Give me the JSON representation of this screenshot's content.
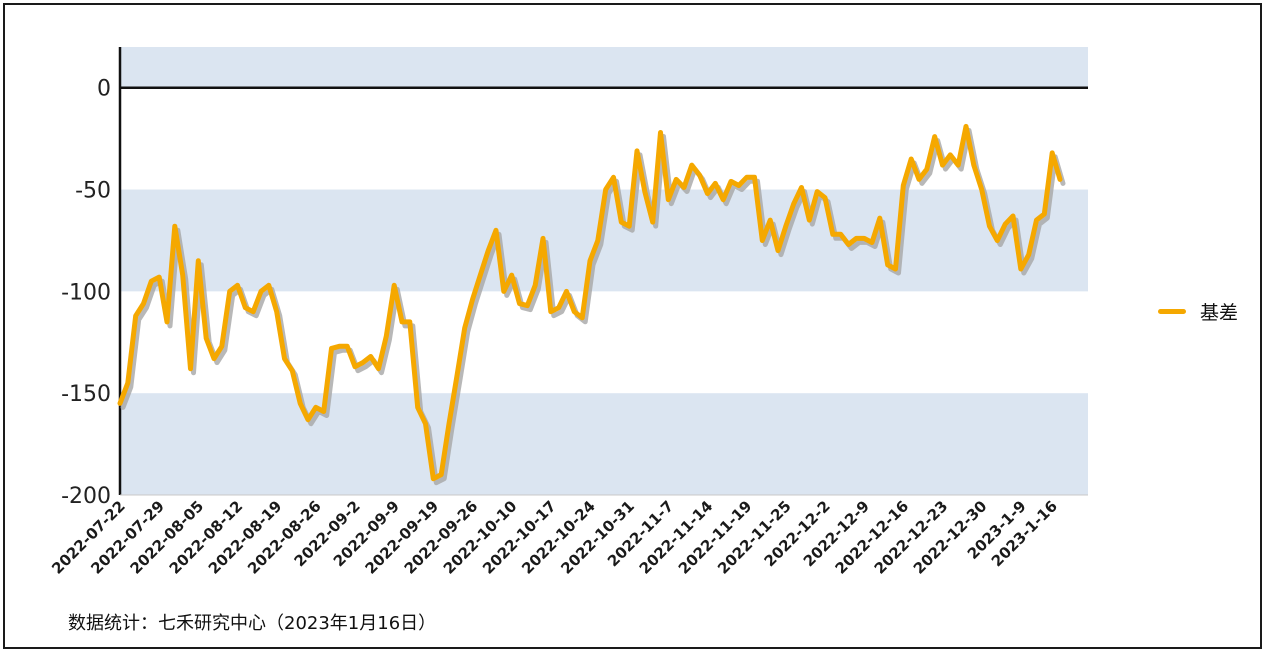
{
  "chart_data": {
    "type": "line",
    "ylim": [
      -200,
      20
    ],
    "yticks": [
      0,
      -50,
      -100,
      -150,
      -200
    ],
    "grid": "alternating horizontal bands",
    "legend_position": "right",
    "series": [
      {
        "name": "基差",
        "color": "#f5a800",
        "values": [
          -155,
          -145,
          -112,
          -106,
          -95,
          -93,
          -115,
          -68,
          -92,
          -138,
          -85,
          -123,
          -133,
          -127,
          -100,
          -97,
          -108,
          -110,
          -100,
          -97,
          -110,
          -133,
          -139,
          -155,
          -163,
          -157,
          -159,
          -128,
          -127,
          -127,
          -137,
          -135,
          -132,
          -138,
          -122,
          -97,
          -115,
          -115,
          -157,
          -165,
          -192,
          -190,
          -165,
          -142,
          -118,
          -104,
          -92,
          -80,
          -70,
          -100,
          -92,
          -106,
          -107,
          -97,
          -74,
          -110,
          -108,
          -100,
          -110,
          -113,
          -85,
          -75,
          -50,
          -44,
          -66,
          -68,
          -31,
          -51,
          -66,
          -22,
          -55,
          -45,
          -49,
          -38,
          -43,
          -52,
          -47,
          -55,
          -46,
          -48,
          -44,
          -44,
          -75,
          -65,
          -80,
          -68,
          -57,
          -49,
          -65,
          -51,
          -54,
          -72,
          -72,
          -77,
          -74,
          -74,
          -76,
          -64,
          -87,
          -89,
          -48,
          -35,
          -45,
          -40,
          -24,
          -38,
          -33,
          -38,
          -19,
          -38,
          -50,
          -68,
          -75,
          -67,
          -63,
          -89,
          -82,
          -65,
          -62,
          -32,
          -45
        ]
      }
    ],
    "x_tick_labels": [
      "2022-07-22",
      "2022-07-29",
      "2022-08-05",
      "2022-08-12",
      "2022-08-19",
      "2022-08-26",
      "2022-09-2",
      "2022-09-9",
      "2022-09-19",
      "2022-09-26",
      "2022-10-10",
      "2022-10-17",
      "2022-10-24",
      "2022-10-31",
      "2022-11-7",
      "2022-11-14",
      "2022-11-19",
      "2022-11-25",
      "2022-12-2",
      "2022-12-9",
      "2022-12-16",
      "2022-12-23",
      "2022-12-30",
      "2023-1-9",
      "2023-1-16"
    ],
    "x_tick_indices": [
      0,
      5,
      10,
      15,
      20,
      25,
      30,
      35,
      40,
      45,
      50,
      55,
      60,
      65,
      70,
      75,
      80,
      85,
      90,
      95,
      100,
      105,
      110,
      115,
      119
    ]
  },
  "colors": {
    "band": "#dbe5f1",
    "line": "#f5a800",
    "shadow": "#a6a6a6",
    "axis": "#111111"
  },
  "source_note": "数据统计：七禾研究中心（2023年1月16日）"
}
